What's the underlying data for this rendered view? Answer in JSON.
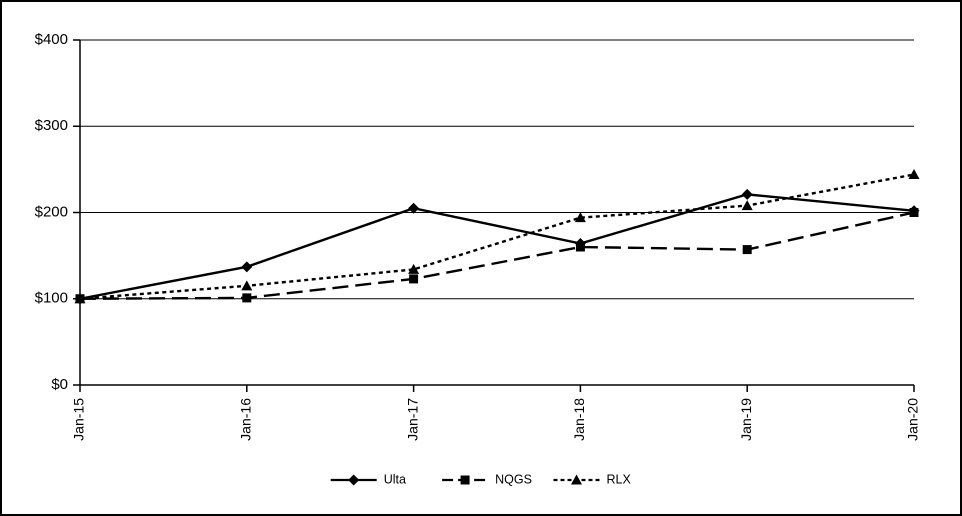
{
  "chart_data": {
    "type": "line",
    "title": "",
    "xlabel": "",
    "ylabel": "",
    "categories": [
      "Jan-15",
      "Jan-16",
      "Jan-17",
      "Jan-18",
      "Jan-19",
      "Jan-20"
    ],
    "series": [
      {
        "name": "Ulta",
        "marker": "diamond",
        "dash": "solid",
        "values": [
          100,
          137,
          205,
          164,
          221,
          202
        ]
      },
      {
        "name": "NQGS",
        "marker": "square",
        "dash": "long-dash",
        "values": [
          100,
          101,
          123,
          160,
          157,
          200
        ]
      },
      {
        "name": "RLX",
        "marker": "triangle",
        "dash": "short-dash",
        "values": [
          100,
          115,
          134,
          194,
          208,
          244
        ]
      }
    ],
    "ylim": [
      0,
      400
    ],
    "ytick_step": 100,
    "ytick_labels": [
      "$0",
      "$100",
      "$200",
      "$300",
      "$400"
    ],
    "grid": true,
    "legend_position": "bottom",
    "line_color": "#000000",
    "background_color": "#ffffff"
  }
}
